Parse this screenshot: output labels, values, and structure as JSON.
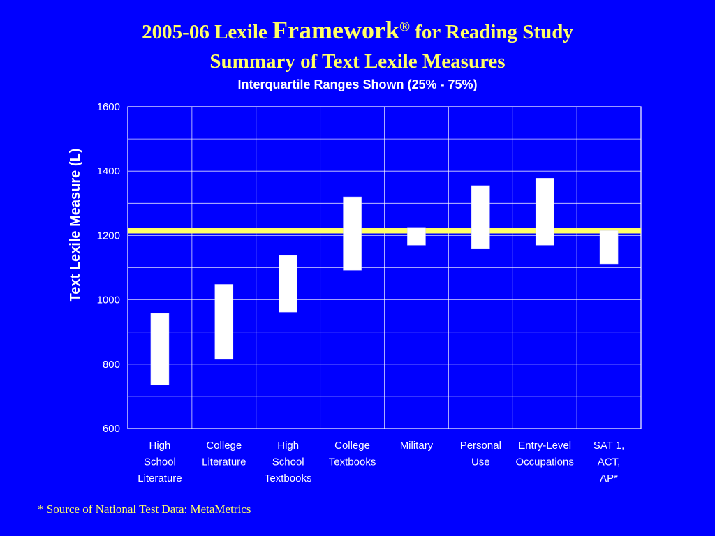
{
  "header": {
    "title_pre": "2005-06 Lexile",
    "title_big": "Framework",
    "title_reg": "®",
    "title_post": "for Reading Study",
    "subtitle": "Summary of Text Lexile Measures",
    "note": "Interquartile Ranges Shown (25% - 75%)"
  },
  "footnote": "* Source of National Test Data: MetaMetrics",
  "colors": {
    "background": "#0000ff",
    "title": "#ffff66",
    "reference_line": "#ffff66",
    "bars": "#ffffff",
    "grid": "#ffffff"
  },
  "chart_data": {
    "type": "floating-bar",
    "title": "",
    "xlabel": "",
    "ylabel": "Text Lexile Measure (L)",
    "ylim": [
      600,
      1600
    ],
    "yticks": [
      600,
      800,
      1000,
      1200,
      1400,
      1600
    ],
    "grid": true,
    "categories": [
      [
        "High",
        "School",
        "Literature"
      ],
      [
        "College",
        "Literature"
      ],
      [
        "High",
        "School",
        "Textbooks"
      ],
      [
        "College",
        "Textbooks"
      ],
      [
        "Military"
      ],
      [
        "Personal",
        "Use"
      ],
      [
        "Entry-Level",
        "Occupations"
      ],
      [
        "SAT 1,",
        "ACT,",
        "AP*"
      ]
    ],
    "ranges": [
      [
        735,
        958
      ],
      [
        815,
        1048
      ],
      [
        962,
        1138
      ],
      [
        1092,
        1320
      ],
      [
        1170,
        1225
      ],
      [
        1158,
        1355
      ],
      [
        1170,
        1378
      ],
      [
        1112,
        1215
      ]
    ],
    "reference_line": 1215
  }
}
